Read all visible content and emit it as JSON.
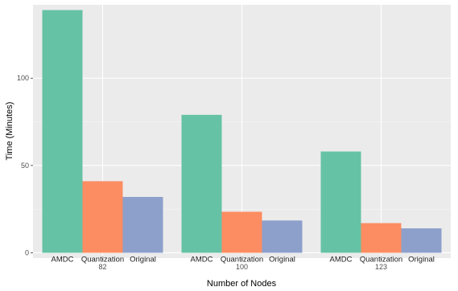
{
  "chart_data": {
    "type": "bar",
    "xlabel": "Number of Nodes",
    "ylabel": "Time (Minutes)",
    "categories": [
      "82",
      "100",
      "123"
    ],
    "ylim": [
      -3,
      142
    ],
    "yticks": [
      0,
      50,
      100
    ],
    "grid": true,
    "legend": "none",
    "series": [
      {
        "name": "AMDC",
        "color": "#66c2a5",
        "values": [
          139,
          79,
          58
        ]
      },
      {
        "name": "Quantization",
        "color": "#fc8d62",
        "values": [
          41,
          23.5,
          17
        ]
      },
      {
        "name": "Original",
        "color": "#8da0cb",
        "values": [
          32,
          18.5,
          14
        ]
      }
    ]
  }
}
